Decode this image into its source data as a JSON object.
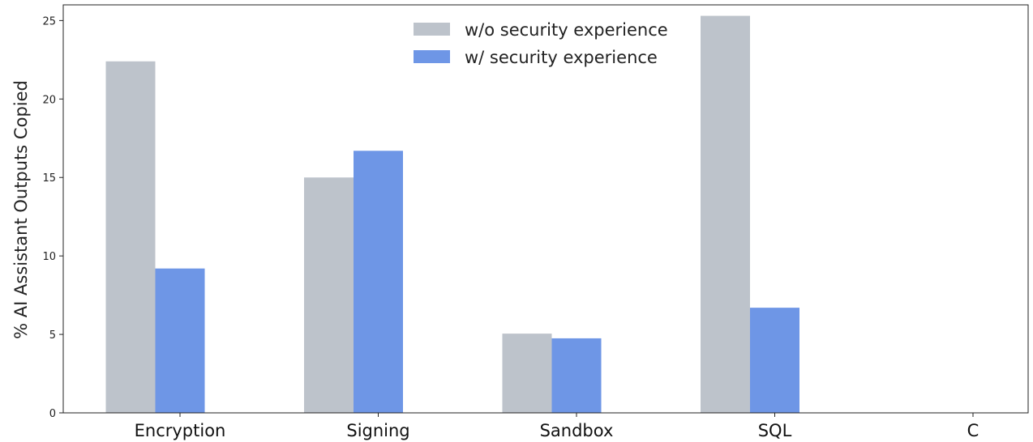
{
  "chart_data": {
    "type": "bar",
    "title": "",
    "xlabel": "",
    "ylabel": "% AI Assistant Outputs Copied",
    "categories": [
      "Encryption",
      "Signing",
      "Sandbox",
      "SQL",
      "C"
    ],
    "series": [
      {
        "name": "w/o security experience",
        "color": "#bdc3cb",
        "values": [
          22.4,
          15.0,
          5.05,
          25.3,
          0
        ]
      },
      {
        "name": "w/ security experience",
        "color": "#6e96e6",
        "values": [
          9.2,
          16.7,
          4.75,
          6.7,
          0
        ]
      }
    ],
    "ylim": [
      0,
      26
    ],
    "yticks": [
      "0",
      "5",
      "10",
      "15",
      "20",
      "25"
    ],
    "grid": false,
    "legend_position": "top-center"
  }
}
